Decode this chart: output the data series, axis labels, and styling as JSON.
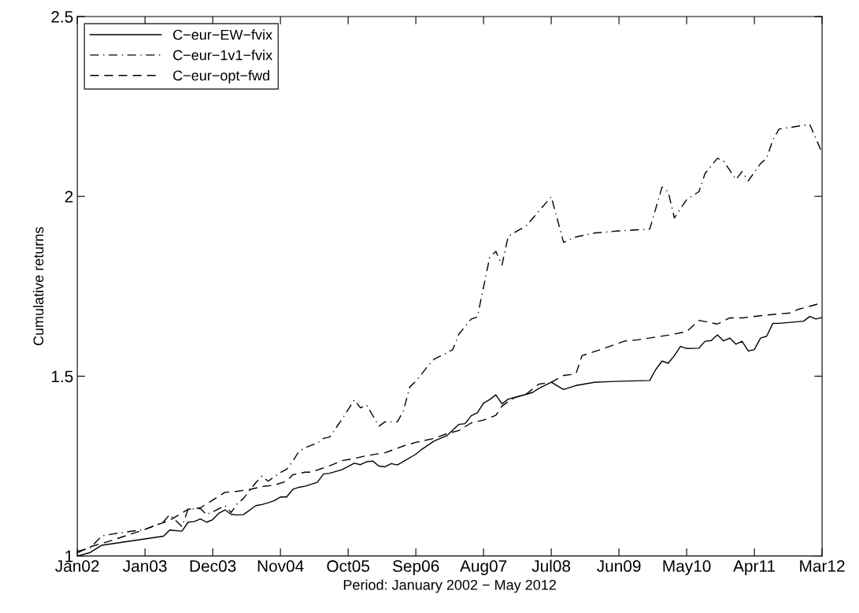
{
  "chart_data": {
    "type": "line",
    "xlabel": "Period: January 2002 − May 2012",
    "ylabel": "Cumulative returns",
    "categories": [
      "Jan02",
      null,
      null,
      null,
      null,
      null,
      null,
      null,
      null,
      null,
      null,
      "Jan03",
      null,
      null,
      null,
      null,
      null,
      null,
      null,
      null,
      null,
      null,
      "Dec03",
      null,
      null,
      null,
      null,
      null,
      null,
      null,
      null,
      null,
      null,
      "Nov04",
      null,
      null,
      null,
      null,
      null,
      null,
      null,
      null,
      null,
      null,
      "Oct05",
      null,
      null,
      null,
      null,
      null,
      null,
      null,
      null,
      null,
      null,
      "Sep06",
      null,
      null,
      null,
      null,
      null,
      null,
      null,
      null,
      null,
      null,
      "Aug07",
      null,
      null,
      null,
      null,
      null,
      null,
      null,
      null,
      null,
      null,
      "Jul08",
      null,
      null,
      null,
      null,
      null,
      null,
      null,
      null,
      null,
      null,
      "Jun09",
      null,
      null,
      null,
      null,
      null,
      null,
      null,
      null,
      null,
      null,
      "May10",
      null,
      null,
      null,
      null,
      null,
      null,
      null,
      null,
      null,
      null,
      "Apr11",
      null,
      null,
      null,
      null,
      null,
      null,
      null,
      null,
      null,
      null,
      "Mar12"
    ],
    "ylim": [
      1,
      2.5
    ],
    "yticks": [
      1,
      1.5,
      2,
      2.5
    ],
    "grid": false,
    "legend": "top left",
    "series": [
      {
        "name": "C−eur−EW−fvix",
        "color": "#000000",
        "line_style": "solid",
        "values": [
          1.0,
          null,
          1.009,
          null,
          1.03,
          null,
          null,
          null,
          null,
          null,
          null,
          null,
          null,
          null,
          1.055,
          1.072,
          null,
          1.069,
          1.094,
          1.096,
          1.103,
          1.094,
          1.101,
          1.119,
          1.128,
          1.116,
          1.114,
          1.115,
          null,
          1.14,
          1.143,
          1.148,
          1.154,
          1.164,
          1.164,
          1.185,
          1.191,
          1.194,
          null,
          1.205,
          1.228,
          1.23,
          1.235,
          1.24,
          null,
          1.258,
          1.254,
          1.262,
          1.264,
          1.25,
          1.248,
          1.257,
          1.253,
          1.263,
          null,
          1.283,
          1.297,
          null,
          1.32,
          null,
          1.334,
          null,
          1.366,
          1.368,
          1.39,
          1.398,
          1.425,
          1.435,
          1.448,
          1.423,
          1.436,
          null,
          1.445,
          null,
          1.455,
          1.466,
          null,
          1.483,
          null,
          1.463,
          null,
          1.474,
          null,
          null,
          1.483,
          null,
          null,
          null,
          1.486,
          null,
          null,
          null,
          null,
          1.488,
          1.519,
          1.542,
          1.536,
          1.557,
          1.583,
          1.577,
          null,
          1.578,
          1.597,
          1.599,
          1.615,
          1.598,
          1.606,
          1.589,
          1.597,
          1.57,
          1.574,
          1.606,
          1.611,
          1.647,
          1.647,
          null,
          null,
          null,
          1.653,
          1.666,
          1.659,
          1.663
        ]
      },
      {
        "name": "C−eur−1v1−fvix",
        "color": "#000000",
        "line_style": "dashdot",
        "values": [
          1.013,
          null,
          1.021,
          null,
          1.056,
          null,
          1.062,
          null,
          null,
          null,
          null,
          1.074,
          null,
          null,
          1.095,
          1.115,
          null,
          1.082,
          1.13,
          null,
          1.132,
          1.115,
          1.123,
          null,
          1.14,
          1.121,
          1.146,
          1.16,
          null,
          1.204,
          1.222,
          1.208,
          null,
          1.232,
          1.241,
          1.263,
          1.291,
          1.301,
          null,
          1.314,
          1.327,
          1.331,
          null,
          1.38,
          null,
          1.434,
          1.412,
          1.42,
          null,
          1.361,
          1.373,
          null,
          1.373,
          1.404,
          1.47,
          1.486,
          null,
          1.529,
          1.548,
          null,
          1.564,
          1.574,
          1.617,
          null,
          1.659,
          1.665,
          null,
          1.83,
          1.847,
          1.809,
          1.889,
          null,
          null,
          1.919,
          null,
          null,
          null,
          1.999,
          null,
          1.872,
          null,
          1.887,
          null,
          null,
          1.898,
          null,
          null,
          null,
          1.904,
          null,
          null,
          null,
          null,
          1.909,
          null,
          2.026,
          2.013,
          1.94,
          null,
          1.991,
          null,
          2.013,
          2.064,
          null,
          2.106,
          2.098,
          null,
          2.047,
          2.069,
          2.043,
          null,
          2.091,
          2.106,
          2.157,
          2.187,
          null,
          null,
          null,
          null,
          2.2,
          null,
          2.121
        ]
      },
      {
        "name": "C−eur−opt−fwd",
        "color": "#000000",
        "line_style": "dashed",
        "values": [
          1.009,
          null,
          1.025,
          null,
          null,
          1.04,
          null,
          null,
          null,
          null,
          null,
          1.074,
          null,
          null,
          null,
          1.099,
          null,
          null,
          1.13,
          null,
          1.134,
          null,
          null,
          null,
          1.177,
          null,
          1.18,
          null,
          1.185,
          null,
          1.193,
          null,
          1.197,
          null,
          1.208,
          1.226,
          null,
          1.233,
          1.233,
          null,
          null,
          1.251,
          null,
          1.265,
          null,
          1.271,
          null,
          1.279,
          null,
          null,
          1.287,
          null,
          null,
          1.306,
          null,
          1.316,
          null,
          null,
          1.327,
          null,
          1.34,
          null,
          1.349,
          null,
          1.37,
          null,
          1.378,
          null,
          1.391,
          1.417,
          null,
          1.44,
          null,
          1.451,
          null,
          1.478,
          null,
          1.483,
          null,
          1.502,
          null,
          1.506,
          1.557,
          null,
          null,
          1.574,
          null,
          null,
          null,
          1.598,
          null,
          1.601,
          null,
          null,
          null,
          null,
          1.614,
          null,
          null,
          1.624,
          null,
          1.655,
          null,
          null,
          1.645,
          null,
          1.662,
          null,
          1.662,
          null,
          null,
          null,
          1.67,
          null,
          null,
          null,
          1.676,
          1.685,
          null,
          null,
          null,
          1.704
        ]
      }
    ]
  }
}
